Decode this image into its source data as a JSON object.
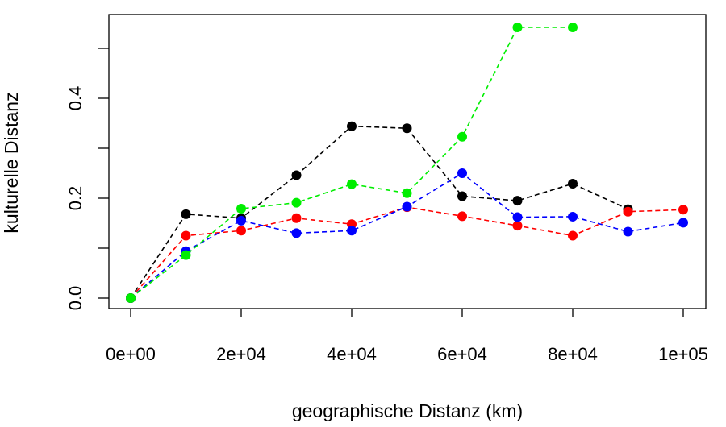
{
  "chart_data": {
    "type": "line",
    "title": "",
    "xlabel": "geographische Distanz (km)",
    "ylabel": "kulturelle Distanz",
    "xlim": [
      0,
      100000
    ],
    "ylim": [
      0,
      0.545
    ],
    "x_ticks": [
      0,
      20000,
      40000,
      60000,
      80000,
      100000
    ],
    "x_tick_labels": [
      "0e+00",
      "2e+04",
      "4e+04",
      "6e+04",
      "8e+04",
      "1e+05"
    ],
    "y_ticks": [
      0.0,
      0.1,
      0.2,
      0.3,
      0.4,
      0.5
    ],
    "y_tick_labels": [
      "0.0",
      "",
      "0.2",
      "",
      "0.4",
      ""
    ],
    "grid": false,
    "legend": "none",
    "line_style": "dashed",
    "marker": "filled-circle",
    "series": [
      {
        "color": "#000000",
        "x": [
          0,
          10000,
          20000,
          30000,
          40000,
          50000,
          60000,
          70000,
          80000,
          90000
        ],
        "values": [
          0.0,
          0.168,
          0.16,
          0.246,
          0.344,
          0.34,
          0.204,
          0.195,
          0.229,
          0.178
        ]
      },
      {
        "color": "#ff0000",
        "x": [
          0,
          10000,
          20000,
          30000,
          40000,
          50000,
          60000,
          70000,
          80000,
          90000,
          100000
        ],
        "values": [
          0.0,
          0.125,
          0.135,
          0.16,
          0.148,
          0.182,
          0.164,
          0.145,
          0.125,
          0.173,
          0.177
        ]
      },
      {
        "color": "#0000ff",
        "x": [
          0,
          10000,
          20000,
          30000,
          40000,
          50000,
          60000,
          70000,
          80000,
          90000,
          100000
        ],
        "values": [
          0.0,
          0.094,
          0.155,
          0.13,
          0.135,
          0.183,
          0.25,
          0.162,
          0.163,
          0.133,
          0.151
        ]
      },
      {
        "color": "#00ee00",
        "x": [
          0,
          10000,
          20000,
          30000,
          40000,
          50000,
          60000,
          70000,
          80000
        ],
        "values": [
          0.0,
          0.086,
          0.179,
          0.191,
          0.228,
          0.21,
          0.323,
          0.542,
          0.542
        ]
      }
    ]
  }
}
